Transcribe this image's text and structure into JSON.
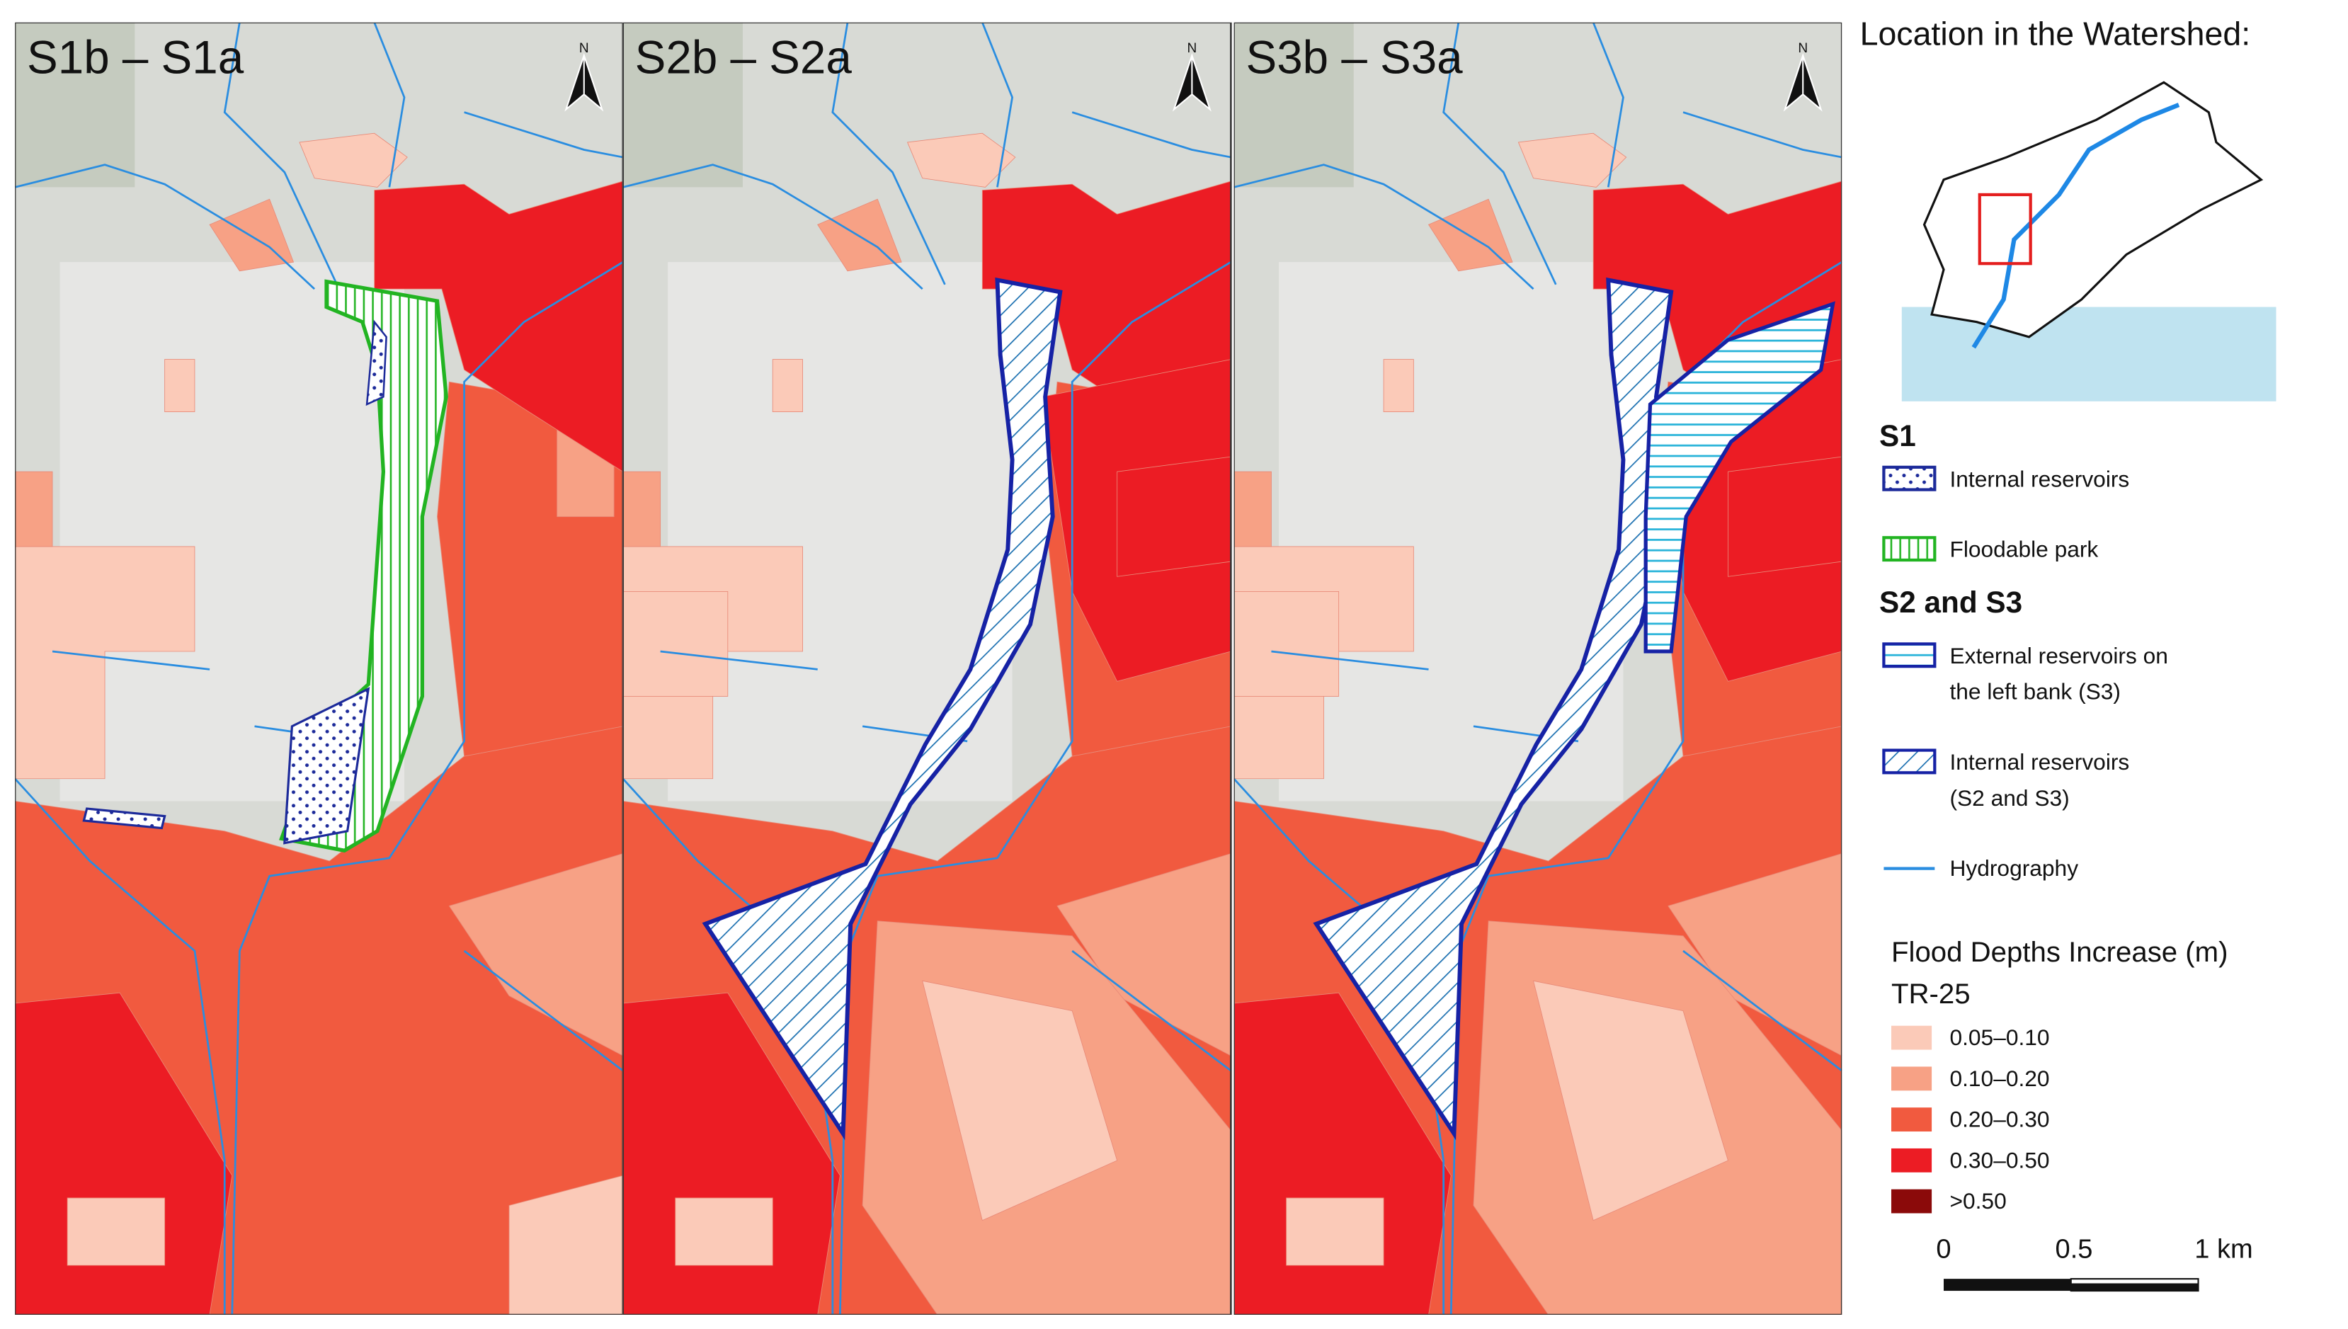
{
  "panels": [
    {
      "title": "S1b – S1a"
    },
    {
      "title": "S2b – S2a"
    },
    {
      "title": "S3b – S3a"
    }
  ],
  "north_label": "N",
  "inset": {
    "title": "Location in the Watershed:"
  },
  "legend": {
    "s1": {
      "heading": "S1",
      "items": [
        {
          "lines": [
            "Internal reservoirs"
          ]
        },
        {
          "lines": [
            "Floodable park"
          ]
        }
      ]
    },
    "s2_s3": {
      "heading": "S2 and S3",
      "items": [
        {
          "lines": [
            "External reservoirs on",
            "the left bank (S3)"
          ]
        },
        {
          "lines": [
            "Internal reservoirs",
            "(S2 and S3)"
          ]
        }
      ]
    },
    "hydrography": "Hydrography",
    "flood": {
      "title": "Flood Depths Increase (m)",
      "subtitle": "TR-25",
      "classes": [
        {
          "label": "0.05–0.10",
          "color": "#fbcab8"
        },
        {
          "label": "0.10–0.20",
          "color": "#f7a185"
        },
        {
          "label": "0.20–0.30",
          "color": "#f15a3f"
        },
        {
          "label": "0.30–0.50",
          "color": "#ec1c24"
        },
        {
          "label": ">0.50",
          "color": "#8b0a0a"
        }
      ]
    }
  },
  "scale_bar": {
    "labels": [
      "0",
      "0.5",
      "1 km"
    ]
  }
}
